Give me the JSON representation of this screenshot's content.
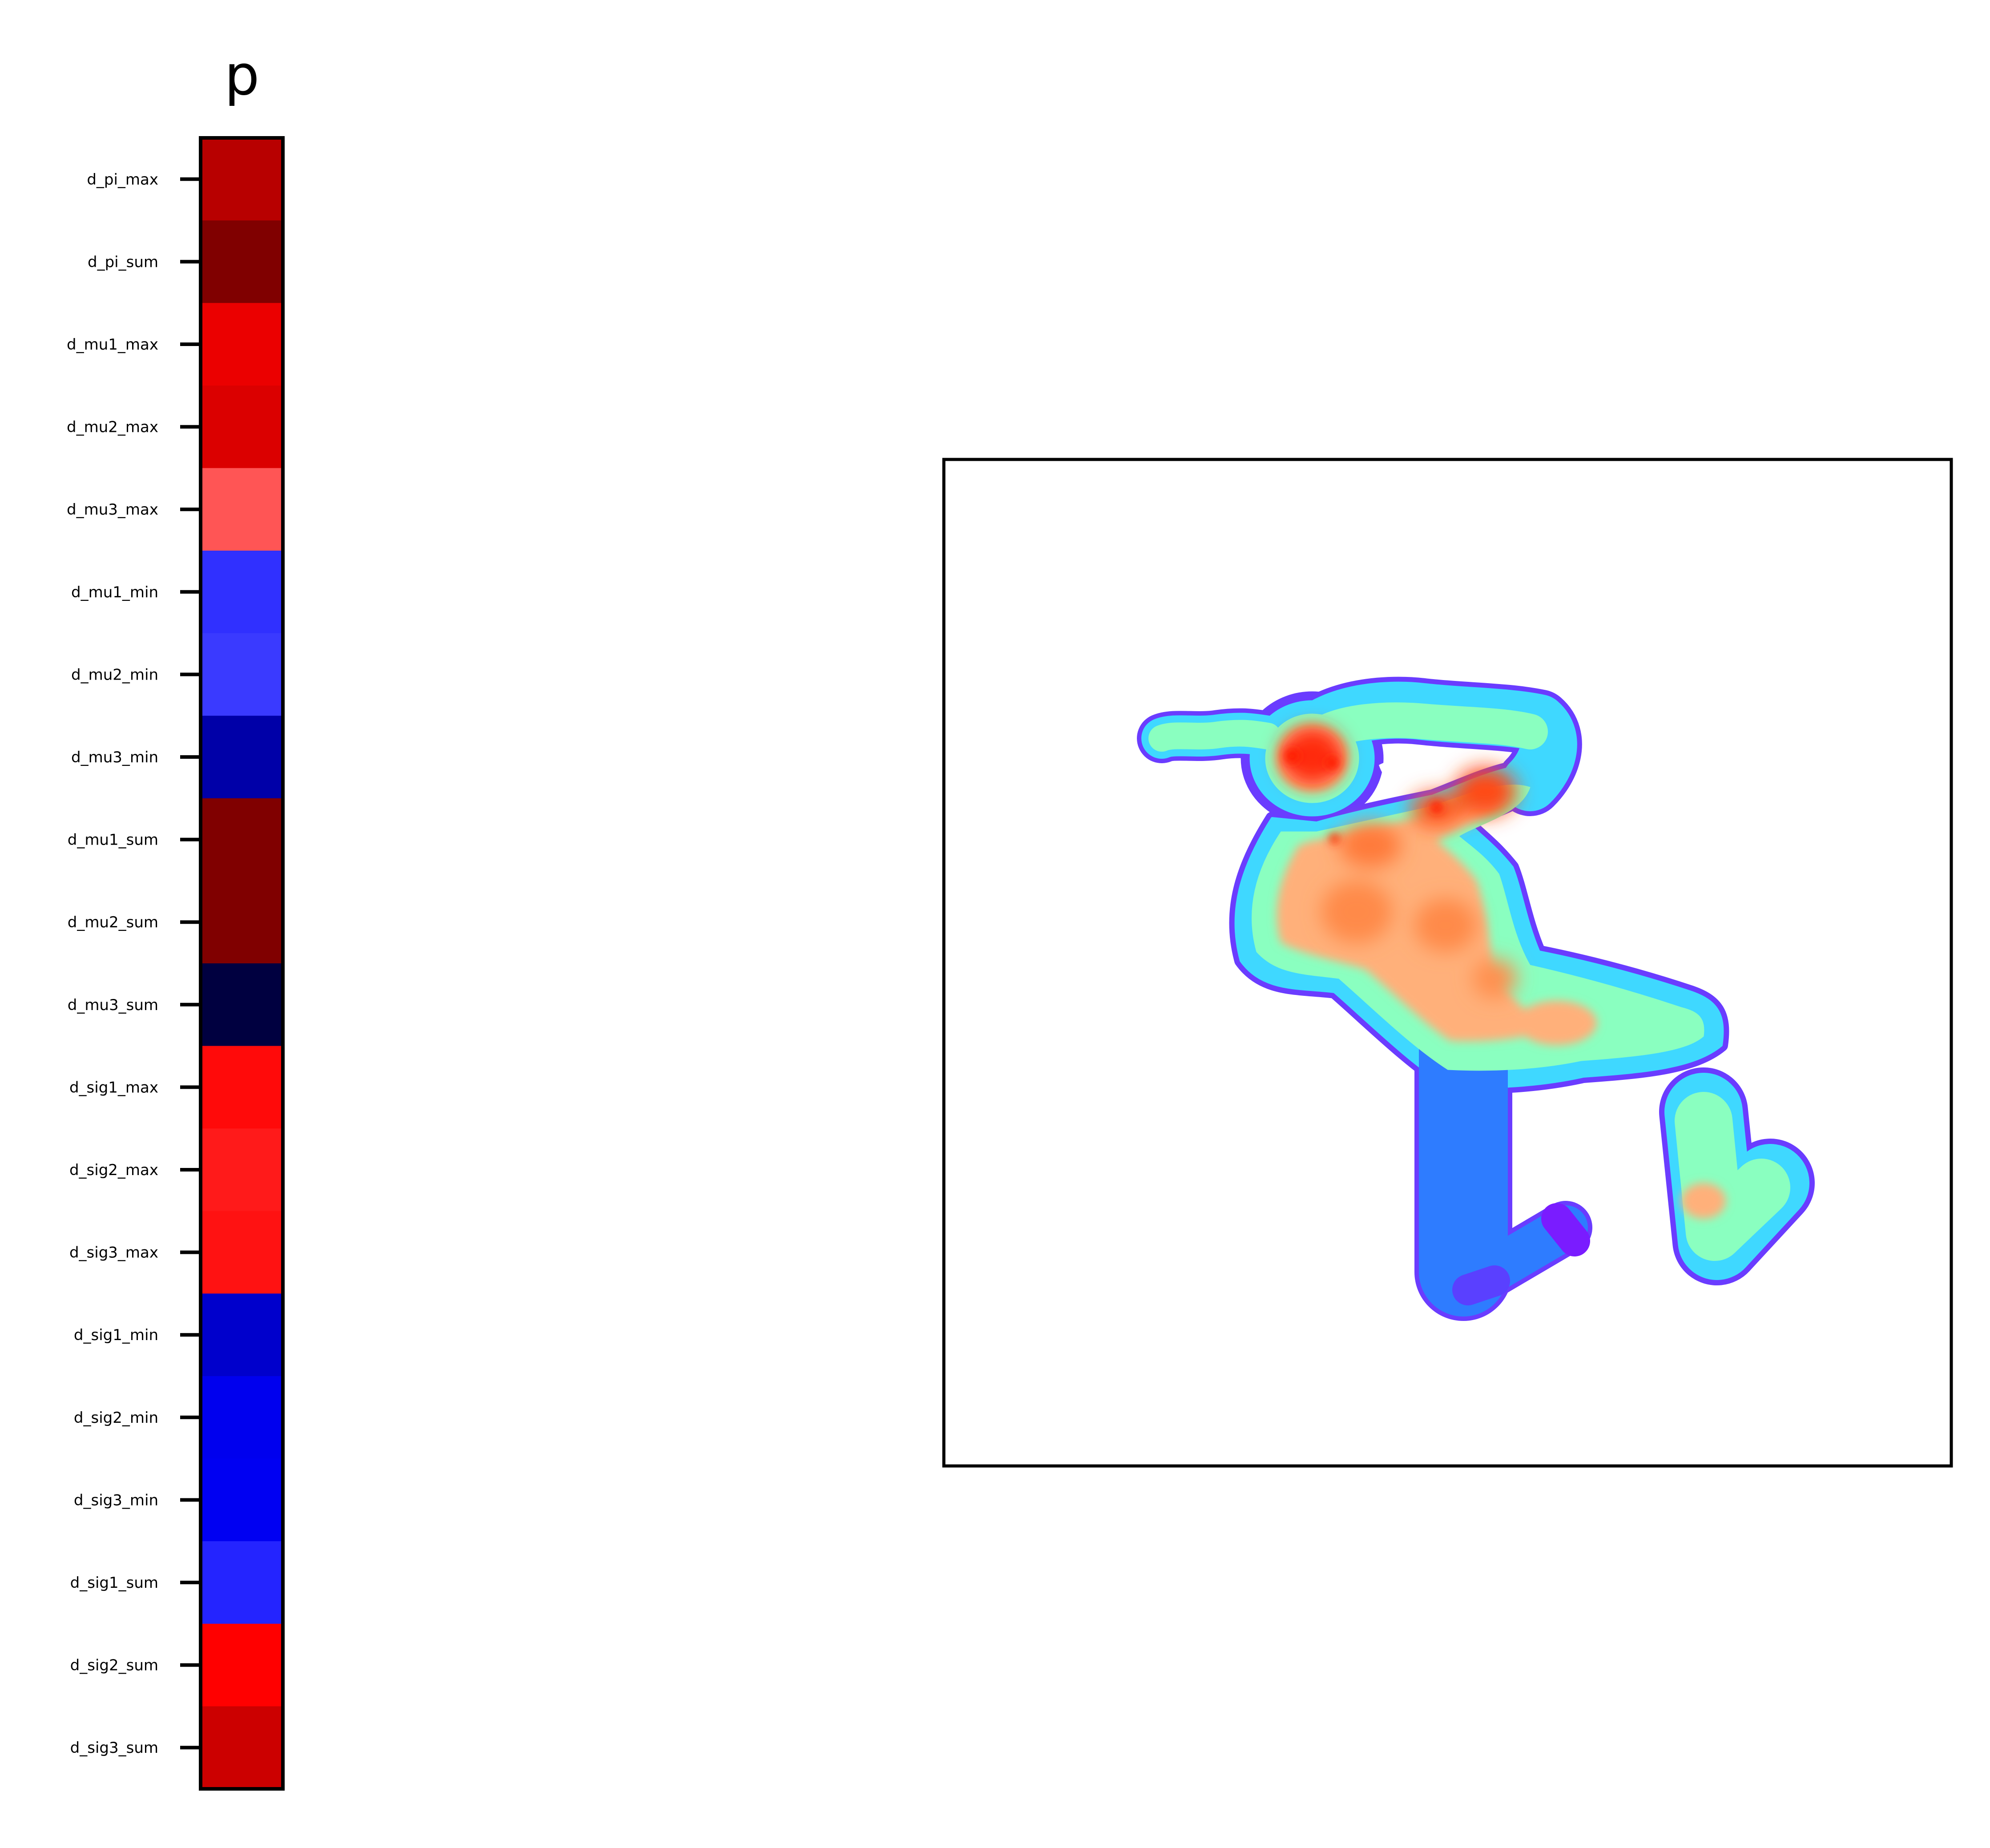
{
  "chart_data": [
    {
      "type": "heatmap",
      "title": "p",
      "xlabel": "",
      "ylabel": "",
      "categories": [
        "d_pi_max",
        "d_pi_sum",
        "d_mu1_max",
        "d_mu2_max",
        "d_mu3_max",
        "d_mu1_min",
        "d_mu2_min",
        "d_mu3_min",
        "d_mu1_sum",
        "d_mu2_sum",
        "d_mu3_sum",
        "d_sig1_max",
        "d_sig2_max",
        "d_sig3_max",
        "d_sig1_min",
        "d_sig2_min",
        "d_sig3_min",
        "d_sig1_sum",
        "d_sig2_sum",
        "d_sig3_sum"
      ],
      "colors": [
        "#b80000",
        "#800000",
        "#eb0000",
        "#db0000",
        "#ff5555",
        "#3030ff",
        "#3a3aff",
        "#0000a8",
        "#800000",
        "#800000",
        "#000040",
        "#ff0a0a",
        "#ff1a1a",
        "#ff1212",
        "#0000cc",
        "#0000ee",
        "#0000f2",
        "#2424ff",
        "#ff0000",
        "#cc0000"
      ],
      "colormap": "seismic",
      "grid": false
    },
    {
      "type": "image",
      "title": "",
      "xlabel": "",
      "ylabel": "",
      "colormap": "rainbow",
      "description_colors": {
        "edge": "#6a3cff",
        "outer": "#3fd8ff",
        "mid": "#8affc0",
        "inner": "#ffb07a",
        "hot": "#ff2a10",
        "leg": "#2e7cff"
      },
      "ticks": false
    }
  ]
}
